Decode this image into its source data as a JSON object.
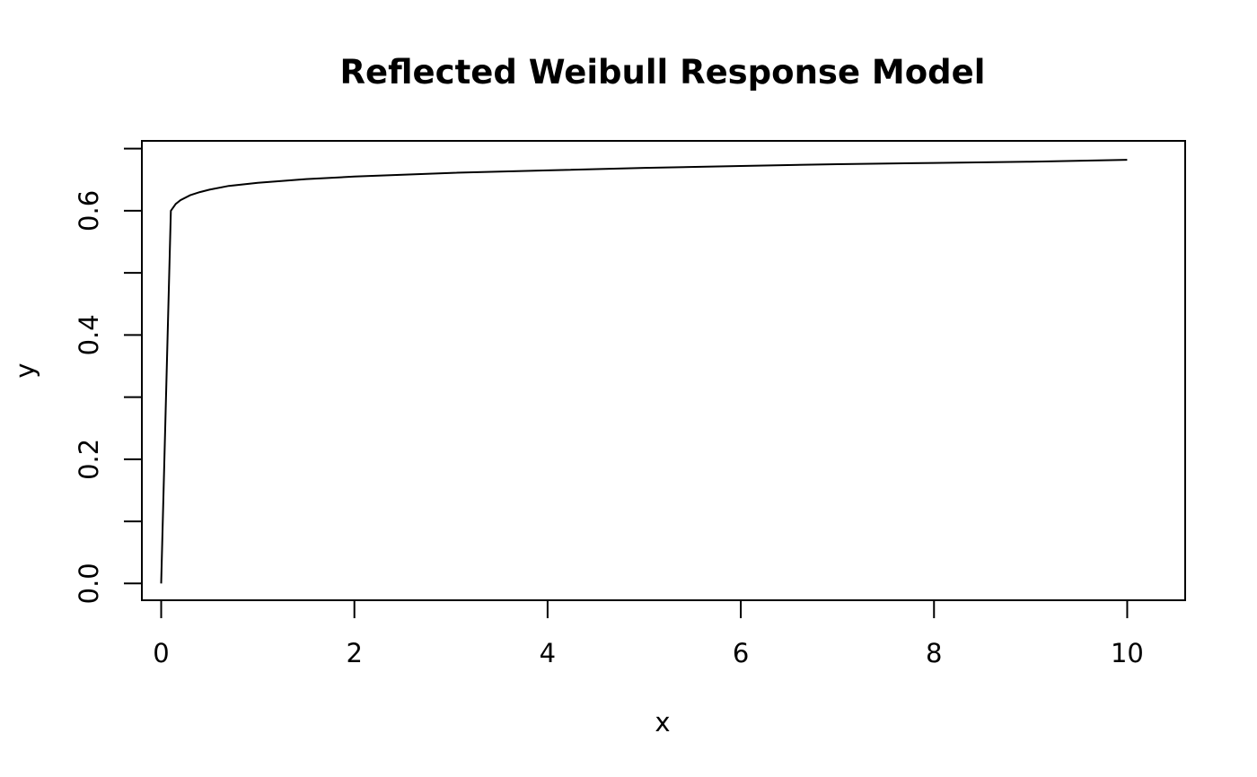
{
  "chart_data": {
    "type": "line",
    "title": "Reflected Weibull Response Model",
    "xlabel": "x",
    "ylabel": "y",
    "xlim": [
      -0.2,
      10.6
    ],
    "ylim": [
      -0.027,
      0.7125
    ],
    "xticks": [
      0,
      2,
      4,
      6,
      8,
      10
    ],
    "xtick_labels": [
      "0",
      "2",
      "4",
      "6",
      "8",
      "10"
    ],
    "yticks": [
      0,
      0.1,
      0.2,
      0.3,
      0.4,
      0.5,
      0.6,
      0.7
    ],
    "ytick_labels": [
      "0.0",
      "",
      "0.2",
      "",
      "0.4",
      "",
      "0.6",
      ""
    ],
    "grid": false,
    "series": [
      {
        "x": [
          0,
          0.1,
          0.15,
          0.2,
          0.3,
          0.4,
          0.5,
          0.7,
          1,
          1.5,
          2,
          3,
          4,
          5,
          6,
          7,
          8,
          9,
          10
        ],
        "y": [
          0,
          0.6,
          0.611,
          0.617,
          0.625,
          0.63,
          0.634,
          0.64,
          0.645,
          0.651,
          0.655,
          0.661,
          0.665,
          0.669,
          0.672,
          0.675,
          0.677,
          0.679,
          0.682
        ],
        "color": "#000000"
      }
    ]
  }
}
